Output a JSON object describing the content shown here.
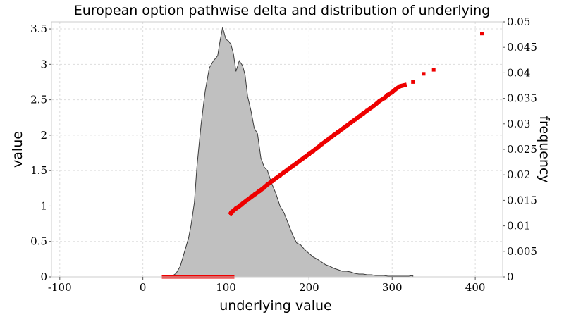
{
  "chart_data": {
    "type": "scatter",
    "title": "European option pathwise delta and distribution of underlying",
    "xlabel": "underlying value",
    "ylabel": "value",
    "y2label": "frequency",
    "xlim": [
      -110,
      433
    ],
    "ylim": [
      0,
      3.6
    ],
    "y2lim": [
      0,
      0.05
    ],
    "x_ticks": [
      "-100",
      "0",
      "100",
      "200",
      "300",
      "400"
    ],
    "y_ticks": [
      "0",
      "0.5",
      "1",
      "1.5",
      "2",
      "2.5",
      "3",
      "3.5"
    ],
    "y2_ticks": [
      "0",
      "0.005",
      "0.01",
      "0.015",
      "0.02",
      "0.025",
      "0.03",
      "0.035",
      "0.04",
      "0.045",
      "0.05"
    ],
    "grid": true,
    "colors": {
      "distribution_fill": "#c0c0c0",
      "distribution_line": "#3a3a3a",
      "delta_points": "#ee0000"
    },
    "series": [
      {
        "type": "area",
        "axis": "value",
        "x": [
          -93,
          28,
          35,
          40,
          45,
          50,
          55,
          58,
          62,
          65,
          70,
          75,
          80,
          85,
          90,
          93,
          96,
          100,
          103,
          106,
          109,
          112,
          116,
          120,
          123,
          126,
          130,
          134,
          138,
          142,
          146,
          150,
          155,
          160,
          165,
          170,
          175,
          180,
          185,
          190,
          195,
          200,
          205,
          210,
          215,
          220,
          225,
          230,
          235,
          240,
          245,
          250,
          255,
          260,
          265,
          270,
          275,
          280,
          285,
          290,
          295,
          300,
          305,
          310,
          315,
          320,
          325
        ],
        "y": [
          0,
          0,
          0.01,
          0.05,
          0.15,
          0.35,
          0.55,
          0.73,
          1.05,
          1.55,
          2.15,
          2.62,
          2.95,
          3.05,
          3.12,
          3.34,
          3.52,
          3.35,
          3.33,
          3.28,
          3.15,
          2.9,
          3.05,
          2.98,
          2.85,
          2.55,
          2.35,
          2.1,
          2.02,
          1.68,
          1.55,
          1.5,
          1.32,
          1.18,
          1.0,
          0.9,
          0.75,
          0.6,
          0.48,
          0.45,
          0.38,
          0.33,
          0.28,
          0.25,
          0.21,
          0.17,
          0.15,
          0.12,
          0.1,
          0.08,
          0.08,
          0.07,
          0.05,
          0.04,
          0.04,
          0.03,
          0.03,
          0.02,
          0.02,
          0.02,
          0.01,
          0.01,
          0.01,
          0.01,
          0.01,
          0.01,
          0.02
        ]
      },
      {
        "type": "scatter",
        "axis": "frequency",
        "name": "",
        "x": [
          25,
          30,
          35,
          40,
          45,
          50,
          55,
          60,
          65,
          70,
          75,
          80,
          85,
          90,
          95,
          100,
          105,
          108
        ],
        "y": [
          0,
          0,
          0,
          0,
          0,
          0,
          0,
          0,
          0,
          0,
          0,
          0,
          0,
          0,
          0,
          0,
          0,
          0
        ]
      },
      {
        "type": "scatter",
        "axis": "frequency",
        "name": "",
        "x": [
          106,
          107,
          109,
          112,
          115,
          118,
          121,
          125,
          130,
          135,
          140,
          145,
          150,
          155,
          160,
          165,
          170,
          175,
          180,
          185,
          190,
          195,
          200,
          205,
          210,
          215,
          220,
          225,
          230,
          235,
          240,
          245,
          250,
          255,
          260,
          265,
          270,
          275,
          280,
          285,
          290,
          295,
          300,
          305,
          310,
          315,
          325,
          338,
          350,
          408
        ],
        "y": [
          0.0125,
          0.0127,
          0.013,
          0.0134,
          0.0137,
          0.0141,
          0.0145,
          0.015,
          0.0156,
          0.0162,
          0.0168,
          0.0174,
          0.0181,
          0.0187,
          0.0193,
          0.0199,
          0.0205,
          0.0211,
          0.0217,
          0.0223,
          0.0229,
          0.0235,
          0.0241,
          0.0247,
          0.0253,
          0.026,
          0.0266,
          0.0272,
          0.0278,
          0.0284,
          0.029,
          0.0296,
          0.0302,
          0.0308,
          0.0314,
          0.032,
          0.0326,
          0.0332,
          0.0338,
          0.0345,
          0.035,
          0.0357,
          0.0362,
          0.0369,
          0.0374,
          0.0376,
          0.0382,
          0.0398,
          0.0406,
          0.0477
        ]
      }
    ]
  }
}
